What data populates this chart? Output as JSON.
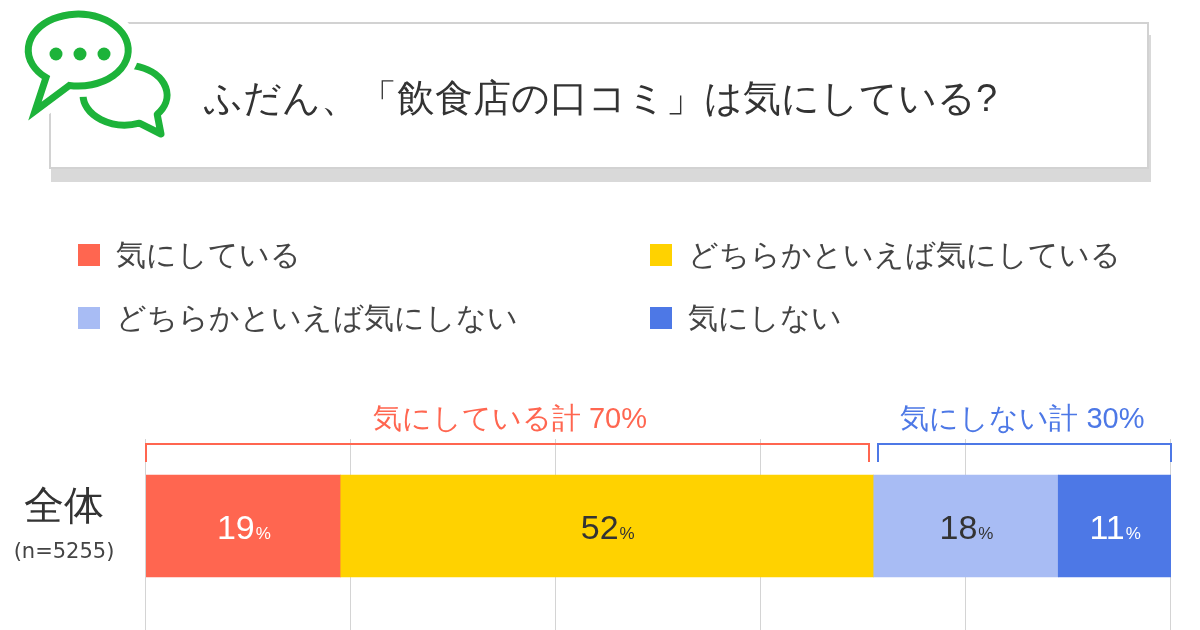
{
  "chart_data": {
    "type": "bar",
    "orientation": "horizontal",
    "stacked": true,
    "title": "ふだん、「飲食店の口コミ」は気にしている?",
    "categories": [
      "全体"
    ],
    "series": [
      {
        "name": "気にしている",
        "color": "#ff6650",
        "values": [
          19
        ],
        "value_labels": [
          "19%"
        ]
      },
      {
        "name": "どちらかといえば気にしている",
        "color": "#ffd200",
        "values": [
          52
        ],
        "value_labels": [
          "52%"
        ]
      },
      {
        "name": "どちらかといえば気にしない",
        "color": "#a8bcf4",
        "values": [
          18
        ],
        "value_labels": [
          "18%"
        ]
      },
      {
        "name": "気にしない",
        "color": "#4d78e6",
        "values": [
          11
        ],
        "value_labels": [
          "11%"
        ]
      }
    ],
    "xlim": [
      0,
      100
    ],
    "xticks": [
      {
        "value": 0,
        "label": null
      },
      {
        "value": 20,
        "label": null
      },
      {
        "value": 40,
        "label": null
      },
      {
        "value": 60,
        "label": null
      },
      {
        "value": 80,
        "label": null
      },
      {
        "value": 100,
        "label": null
      }
    ],
    "grid": "x",
    "legend": "top",
    "tick_labels": "y",
    "annotations": [
      "気にしている計 70%",
      "気にしない計 30%",
      "(n=5255)"
    ]
  }
}
